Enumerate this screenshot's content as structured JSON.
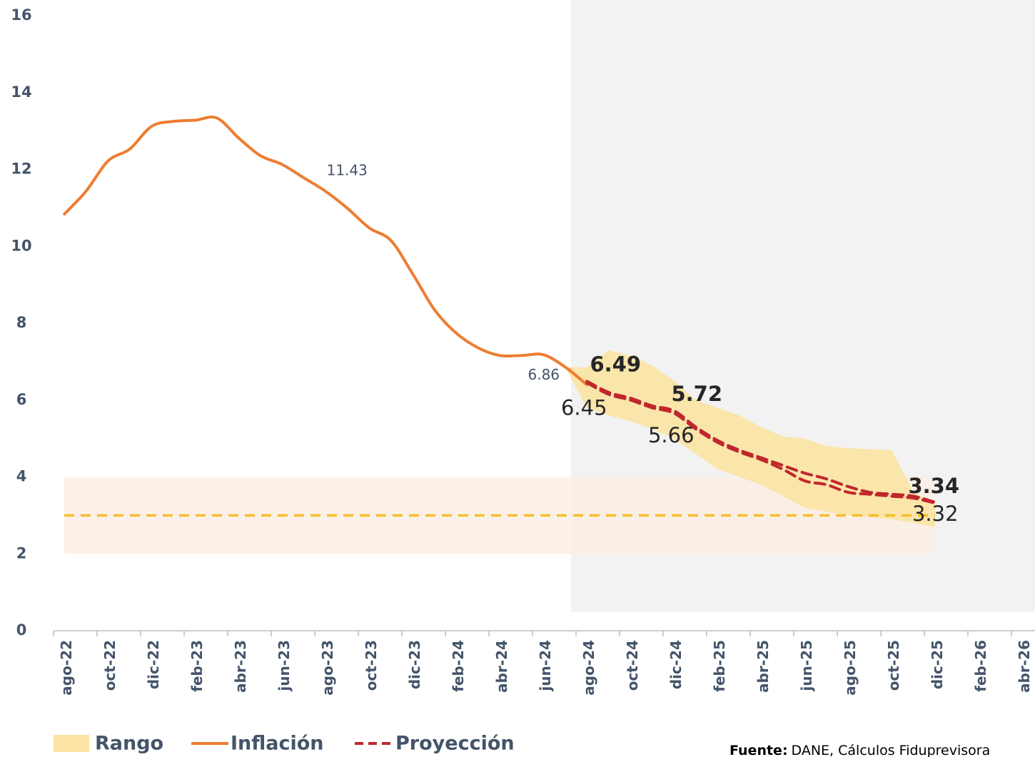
{
  "chart_data": {
    "type": "line",
    "categories": [
      "ago-22",
      null,
      "oct-22",
      null,
      "dic-22",
      null,
      "feb-23",
      null,
      "abr-23",
      null,
      "jun-23",
      null,
      "ago-23",
      null,
      "oct-23",
      null,
      "dic-23",
      null,
      "feb-24",
      null,
      "abr-24",
      null,
      "jun-24",
      null,
      "ago-24",
      null,
      "oct-24",
      null,
      "dic-24",
      null,
      "feb-25",
      null,
      "abr-25",
      null,
      "jun-25",
      null,
      "ago-25",
      null,
      "oct-25",
      null,
      "dic-25",
      null,
      "feb-26",
      null,
      "abr-26"
    ],
    "ylim": [
      0,
      16
    ],
    "yticks": [
      0,
      2,
      4,
      6,
      8,
      10,
      12,
      14,
      16
    ],
    "grid": false,
    "reference_band": [
      2,
      4
    ],
    "reference_line": 3,
    "series": [
      {
        "name": "Rango",
        "type": "range",
        "color": "#fbe3a3",
        "values": [
          null,
          null,
          null,
          null,
          null,
          null,
          null,
          null,
          null,
          null,
          null,
          null,
          null,
          null,
          null,
          null,
          null,
          null,
          null,
          null,
          null,
          null,
          null,
          6.86,
          6.85,
          7.3,
          7.15,
          6.9,
          6.5,
          6.0,
          5.8,
          5.6,
          5.3,
          5.05,
          5.0,
          4.8,
          4.75,
          4.72,
          4.7,
          3.6,
          3.3,
          null,
          null,
          null,
          null
        ],
        "low": [
          null,
          null,
          null,
          null,
          null,
          null,
          null,
          null,
          null,
          null,
          null,
          null,
          null,
          null,
          null,
          null,
          null,
          null,
          null,
          null,
          null,
          null,
          null,
          6.86,
          5.8,
          5.6,
          5.45,
          5.25,
          5.0,
          4.6,
          4.2,
          4.0,
          3.8,
          3.5,
          3.2,
          3.1,
          3.0,
          2.95,
          2.9,
          2.8,
          2.7,
          null,
          null,
          null,
          null
        ]
      },
      {
        "name": "Inflación",
        "type": "line",
        "color": "#ed7d31",
        "values": [
          10.84,
          11.44,
          12.22,
          12.53,
          13.12,
          13.25,
          13.28,
          13.34,
          12.82,
          12.36,
          12.13,
          11.78,
          11.43,
          10.99,
          10.48,
          10.15,
          9.28,
          8.35,
          7.74,
          7.36,
          7.16,
          7.16,
          7.18,
          6.86,
          6.4,
          null,
          null,
          null,
          null,
          null,
          null,
          null,
          null,
          null,
          null,
          null,
          null,
          null,
          null,
          null,
          null,
          null,
          null,
          null,
          null
        ],
        "value_labels": [
          null,
          null,
          null,
          null,
          null,
          null,
          null,
          null,
          null,
          null,
          null,
          null,
          "11.43",
          null,
          null,
          null,
          null,
          null,
          null,
          null,
          null,
          null,
          null,
          "6.86",
          null,
          null,
          null,
          null,
          null,
          null,
          null,
          null,
          null,
          null,
          null,
          null,
          null,
          null,
          null,
          null,
          null,
          null,
          null,
          null,
          null
        ]
      },
      {
        "name": "Proyección",
        "type": "line",
        "dashed": true,
        "color": "#c0272d",
        "values": [
          null,
          null,
          null,
          null,
          null,
          null,
          null,
          null,
          null,
          null,
          null,
          null,
          null,
          null,
          null,
          null,
          null,
          null,
          null,
          null,
          null,
          null,
          null,
          null,
          6.49,
          6.2,
          6.05,
          5.85,
          5.72,
          5.3,
          4.95,
          4.7,
          4.5,
          4.3,
          4.1,
          3.95,
          3.75,
          3.6,
          3.55,
          3.5,
          3.34,
          null,
          null,
          null,
          null
        ],
        "value_labels": [
          null,
          null,
          null,
          null,
          null,
          null,
          null,
          null,
          null,
          null,
          null,
          null,
          null,
          null,
          null,
          null,
          null,
          null,
          null,
          null,
          null,
          null,
          null,
          null,
          "6.49",
          null,
          null,
          null,
          "5.72",
          null,
          null,
          null,
          null,
          null,
          null,
          null,
          null,
          null,
          null,
          null,
          "3.34",
          null,
          null,
          null,
          null
        ]
      },
      {
        "type": "line",
        "dashed": true,
        "color": "#c0272d",
        "values": [
          null,
          null,
          null,
          null,
          null,
          null,
          null,
          null,
          null,
          null,
          null,
          null,
          null,
          null,
          null,
          null,
          null,
          null,
          null,
          null,
          null,
          null,
          null,
          null,
          6.45,
          6.15,
          6.0,
          5.8,
          5.66,
          5.25,
          4.9,
          4.65,
          4.45,
          4.2,
          3.9,
          3.8,
          3.6,
          3.55,
          3.5,
          3.45,
          3.32,
          null,
          null,
          null,
          null
        ],
        "value_labels": [
          null,
          null,
          null,
          null,
          null,
          null,
          null,
          null,
          null,
          null,
          null,
          null,
          null,
          null,
          null,
          null,
          null,
          null,
          null,
          null,
          null,
          null,
          null,
          null,
          "6.45",
          null,
          null,
          null,
          "5.66",
          null,
          null,
          null,
          null,
          null,
          null,
          null,
          null,
          null,
          null,
          null,
          "3.32",
          null,
          null,
          null,
          null
        ]
      }
    ],
    "source": {
      "label": "Fuente:",
      "text": "DANE, Cálculos Fiduprevisora"
    }
  }
}
